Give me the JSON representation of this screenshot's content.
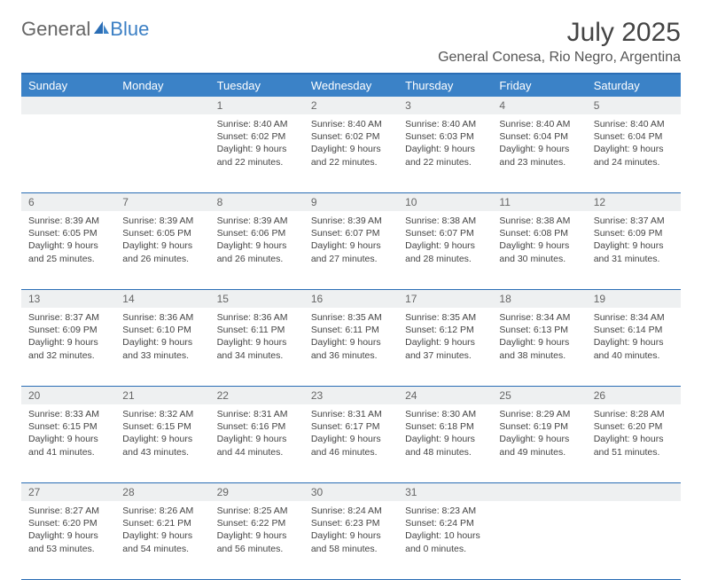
{
  "logo": {
    "general": "General",
    "blue": "Blue"
  },
  "title": "July 2025",
  "location": "General Conesa, Rio Negro, Argentina",
  "colors": {
    "header_bg": "#3b82c7",
    "header_text": "#ffffff",
    "border": "#2a6db5",
    "daynum_bg": "#eef0f1",
    "text": "#444444",
    "logo_gray": "#666666",
    "logo_blue": "#3b7fc4"
  },
  "weekdays": [
    "Sunday",
    "Monday",
    "Tuesday",
    "Wednesday",
    "Thursday",
    "Friday",
    "Saturday"
  ],
  "weeks": [
    {
      "nums": [
        "",
        "",
        "1",
        "2",
        "3",
        "4",
        "5"
      ],
      "cells": [
        null,
        null,
        {
          "sunrise": "Sunrise: 8:40 AM",
          "sunset": "Sunset: 6:02 PM",
          "day1": "Daylight: 9 hours",
          "day2": "and 22 minutes."
        },
        {
          "sunrise": "Sunrise: 8:40 AM",
          "sunset": "Sunset: 6:02 PM",
          "day1": "Daylight: 9 hours",
          "day2": "and 22 minutes."
        },
        {
          "sunrise": "Sunrise: 8:40 AM",
          "sunset": "Sunset: 6:03 PM",
          "day1": "Daylight: 9 hours",
          "day2": "and 22 minutes."
        },
        {
          "sunrise": "Sunrise: 8:40 AM",
          "sunset": "Sunset: 6:04 PM",
          "day1": "Daylight: 9 hours",
          "day2": "and 23 minutes."
        },
        {
          "sunrise": "Sunrise: 8:40 AM",
          "sunset": "Sunset: 6:04 PM",
          "day1": "Daylight: 9 hours",
          "day2": "and 24 minutes."
        }
      ]
    },
    {
      "nums": [
        "6",
        "7",
        "8",
        "9",
        "10",
        "11",
        "12"
      ],
      "cells": [
        {
          "sunrise": "Sunrise: 8:39 AM",
          "sunset": "Sunset: 6:05 PM",
          "day1": "Daylight: 9 hours",
          "day2": "and 25 minutes."
        },
        {
          "sunrise": "Sunrise: 8:39 AM",
          "sunset": "Sunset: 6:05 PM",
          "day1": "Daylight: 9 hours",
          "day2": "and 26 minutes."
        },
        {
          "sunrise": "Sunrise: 8:39 AM",
          "sunset": "Sunset: 6:06 PM",
          "day1": "Daylight: 9 hours",
          "day2": "and 26 minutes."
        },
        {
          "sunrise": "Sunrise: 8:39 AM",
          "sunset": "Sunset: 6:07 PM",
          "day1": "Daylight: 9 hours",
          "day2": "and 27 minutes."
        },
        {
          "sunrise": "Sunrise: 8:38 AM",
          "sunset": "Sunset: 6:07 PM",
          "day1": "Daylight: 9 hours",
          "day2": "and 28 minutes."
        },
        {
          "sunrise": "Sunrise: 8:38 AM",
          "sunset": "Sunset: 6:08 PM",
          "day1": "Daylight: 9 hours",
          "day2": "and 30 minutes."
        },
        {
          "sunrise": "Sunrise: 8:37 AM",
          "sunset": "Sunset: 6:09 PM",
          "day1": "Daylight: 9 hours",
          "day2": "and 31 minutes."
        }
      ]
    },
    {
      "nums": [
        "13",
        "14",
        "15",
        "16",
        "17",
        "18",
        "19"
      ],
      "cells": [
        {
          "sunrise": "Sunrise: 8:37 AM",
          "sunset": "Sunset: 6:09 PM",
          "day1": "Daylight: 9 hours",
          "day2": "and 32 minutes."
        },
        {
          "sunrise": "Sunrise: 8:36 AM",
          "sunset": "Sunset: 6:10 PM",
          "day1": "Daylight: 9 hours",
          "day2": "and 33 minutes."
        },
        {
          "sunrise": "Sunrise: 8:36 AM",
          "sunset": "Sunset: 6:11 PM",
          "day1": "Daylight: 9 hours",
          "day2": "and 34 minutes."
        },
        {
          "sunrise": "Sunrise: 8:35 AM",
          "sunset": "Sunset: 6:11 PM",
          "day1": "Daylight: 9 hours",
          "day2": "and 36 minutes."
        },
        {
          "sunrise": "Sunrise: 8:35 AM",
          "sunset": "Sunset: 6:12 PM",
          "day1": "Daylight: 9 hours",
          "day2": "and 37 minutes."
        },
        {
          "sunrise": "Sunrise: 8:34 AM",
          "sunset": "Sunset: 6:13 PM",
          "day1": "Daylight: 9 hours",
          "day2": "and 38 minutes."
        },
        {
          "sunrise": "Sunrise: 8:34 AM",
          "sunset": "Sunset: 6:14 PM",
          "day1": "Daylight: 9 hours",
          "day2": "and 40 minutes."
        }
      ]
    },
    {
      "nums": [
        "20",
        "21",
        "22",
        "23",
        "24",
        "25",
        "26"
      ],
      "cells": [
        {
          "sunrise": "Sunrise: 8:33 AM",
          "sunset": "Sunset: 6:15 PM",
          "day1": "Daylight: 9 hours",
          "day2": "and 41 minutes."
        },
        {
          "sunrise": "Sunrise: 8:32 AM",
          "sunset": "Sunset: 6:15 PM",
          "day1": "Daylight: 9 hours",
          "day2": "and 43 minutes."
        },
        {
          "sunrise": "Sunrise: 8:31 AM",
          "sunset": "Sunset: 6:16 PM",
          "day1": "Daylight: 9 hours",
          "day2": "and 44 minutes."
        },
        {
          "sunrise": "Sunrise: 8:31 AM",
          "sunset": "Sunset: 6:17 PM",
          "day1": "Daylight: 9 hours",
          "day2": "and 46 minutes."
        },
        {
          "sunrise": "Sunrise: 8:30 AM",
          "sunset": "Sunset: 6:18 PM",
          "day1": "Daylight: 9 hours",
          "day2": "and 48 minutes."
        },
        {
          "sunrise": "Sunrise: 8:29 AM",
          "sunset": "Sunset: 6:19 PM",
          "day1": "Daylight: 9 hours",
          "day2": "and 49 minutes."
        },
        {
          "sunrise": "Sunrise: 8:28 AM",
          "sunset": "Sunset: 6:20 PM",
          "day1": "Daylight: 9 hours",
          "day2": "and 51 minutes."
        }
      ]
    },
    {
      "nums": [
        "27",
        "28",
        "29",
        "30",
        "31",
        "",
        ""
      ],
      "cells": [
        {
          "sunrise": "Sunrise: 8:27 AM",
          "sunset": "Sunset: 6:20 PM",
          "day1": "Daylight: 9 hours",
          "day2": "and 53 minutes."
        },
        {
          "sunrise": "Sunrise: 8:26 AM",
          "sunset": "Sunset: 6:21 PM",
          "day1": "Daylight: 9 hours",
          "day2": "and 54 minutes."
        },
        {
          "sunrise": "Sunrise: 8:25 AM",
          "sunset": "Sunset: 6:22 PM",
          "day1": "Daylight: 9 hours",
          "day2": "and 56 minutes."
        },
        {
          "sunrise": "Sunrise: 8:24 AM",
          "sunset": "Sunset: 6:23 PM",
          "day1": "Daylight: 9 hours",
          "day2": "and 58 minutes."
        },
        {
          "sunrise": "Sunrise: 8:23 AM",
          "sunset": "Sunset: 6:24 PM",
          "day1": "Daylight: 10 hours",
          "day2": "and 0 minutes."
        },
        null,
        null
      ]
    }
  ]
}
